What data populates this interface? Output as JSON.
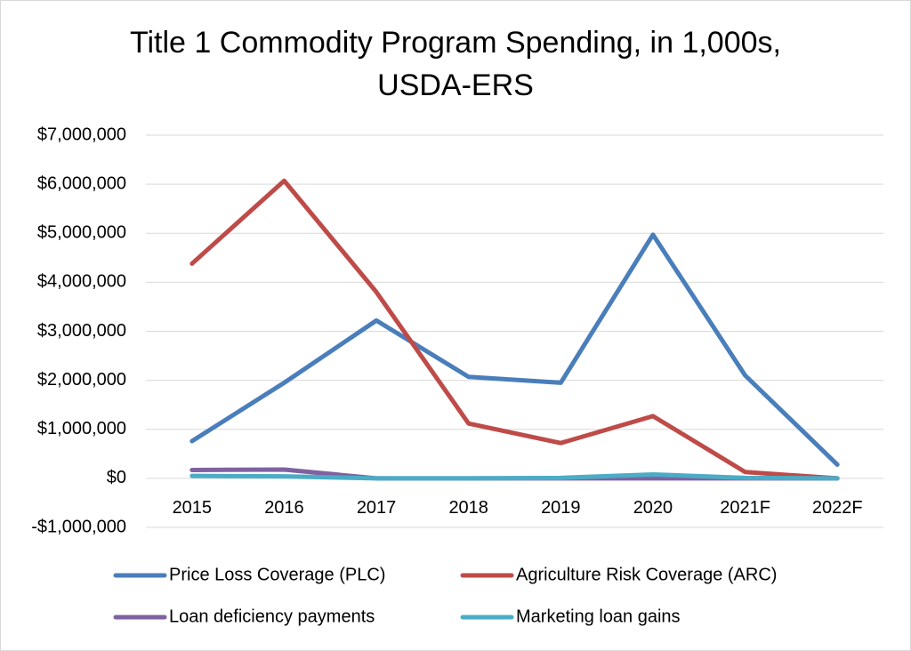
{
  "chart_data": {
    "type": "line",
    "title": [
      "Title 1 Commodity Program Spending, in 1,000s,",
      "USDA-ERS"
    ],
    "categories": [
      "2015",
      "2016",
      "2017",
      "2018",
      "2019",
      "2020",
      "2021F",
      "2022F"
    ],
    "series": [
      {
        "name": "Price Loss Coverage (PLC)",
        "color": "#4a7ebb",
        "values": [
          760000,
          1950000,
          3220000,
          2070000,
          1950000,
          4970000,
          2100000,
          280000
        ]
      },
      {
        "name": "Agriculture Risk Coverage (ARC)",
        "color": "#be4b48",
        "values": [
          4380000,
          6070000,
          3800000,
          1120000,
          720000,
          1270000,
          130000,
          0
        ]
      },
      {
        "name": "Loan deficiency payments",
        "color": "#7e62a1",
        "values": [
          170000,
          180000,
          0,
          0,
          0,
          0,
          0,
          0
        ]
      },
      {
        "name": "Marketing loan gains",
        "color": "#4bacc6",
        "values": [
          50000,
          40000,
          0,
          0,
          10000,
          80000,
          10000,
          0
        ]
      }
    ],
    "ylim": [
      -1000000,
      7000000
    ],
    "yticks": [
      {
        "value": -1000000,
        "label": "-$1,000,000"
      },
      {
        "value": 0,
        "label": "$0"
      },
      {
        "value": 1000000,
        "label": "$1,000,000"
      },
      {
        "value": 2000000,
        "label": "$2,000,000"
      },
      {
        "value": 3000000,
        "label": "$3,000,000"
      },
      {
        "value": 4000000,
        "label": "$4,000,000"
      },
      {
        "value": 5000000,
        "label": "$5,000,000"
      },
      {
        "value": 6000000,
        "label": "$6,000,000"
      },
      {
        "value": 7000000,
        "label": "$7,000,000"
      }
    ],
    "grid": true,
    "legend": "bottom"
  }
}
